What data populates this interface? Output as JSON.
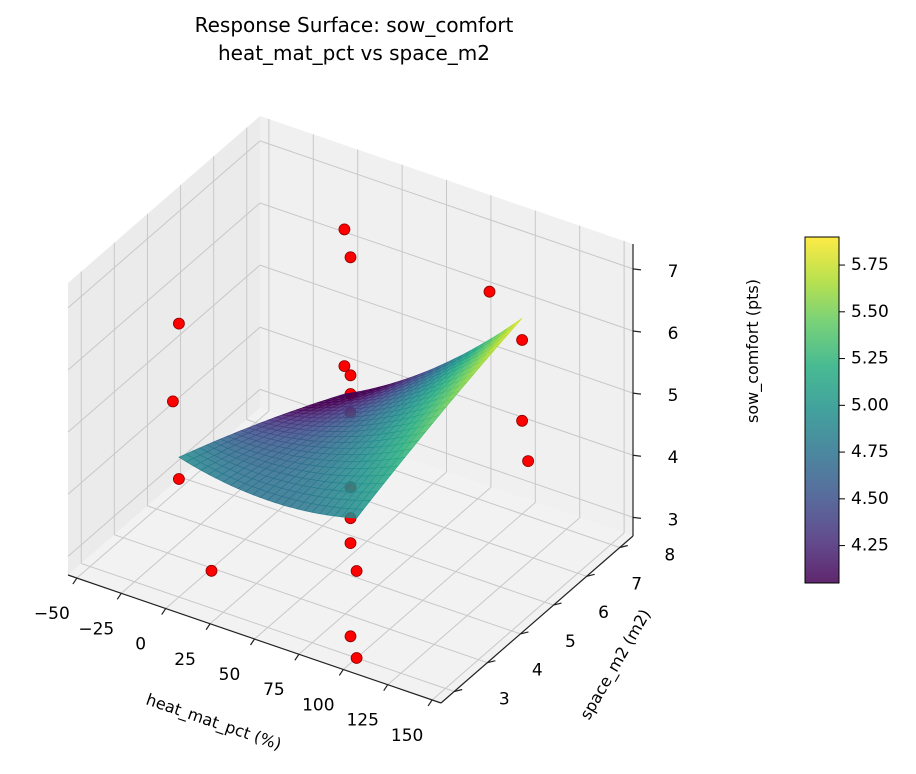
{
  "chart_data": {
    "type": "surface3d",
    "title_line1": "Response Surface: sow_comfort",
    "title_line2": "heat_mat_pct vs space_m2",
    "xlabel": "heat_mat_pct (%)",
    "ylabel": "space_m2 (m2)",
    "zlabel": "sow_comfort (pts)",
    "x_ticks": [
      -50,
      -25,
      0,
      25,
      50,
      75,
      100,
      125,
      150
    ],
    "y_ticks": [
      3,
      4,
      5,
      6,
      7,
      8
    ],
    "z_ticks": [
      3,
      4,
      5,
      6,
      7
    ],
    "xlim": [
      -55,
      155
    ],
    "ylim": [
      2.6,
      8.4
    ],
    "zlim": [
      2.7,
      7.4
    ],
    "colorbar": {
      "min": 4.05,
      "max": 5.9,
      "ticks": [
        "4.25",
        "4.50",
        "4.75",
        "5.00",
        "5.25",
        "5.50",
        "5.75"
      ],
      "colormap": "viridis"
    },
    "surface_range": {
      "x": [
        0,
        100
      ],
      "y": [
        3,
        8
      ]
    },
    "points_color": "#ff0000",
    "points": [
      {
        "x": -50,
        "y": 5.5,
        "z": 4.2
      },
      {
        "x": 0,
        "y": 3,
        "z": 4.6
      },
      {
        "x": 0,
        "y": 3,
        "z": 7.1
      },
      {
        "x": 0,
        "y": 8,
        "z": 4.1
      },
      {
        "x": 0,
        "y": 8,
        "z": 6.3
      },
      {
        "x": 100,
        "y": 3,
        "z": 4.1
      },
      {
        "x": 100,
        "y": 8,
        "z": 5.5
      },
      {
        "x": 100,
        "y": 8,
        "z": 4.2
      },
      {
        "x": 150,
        "y": 5.5,
        "z": 5.2
      },
      {
        "x": 50,
        "y": 1.3,
        "z": 4.4
      },
      {
        "x": 50,
        "y": 9.7,
        "z": 5.0
      },
      {
        "x": 50,
        "y": 5.5,
        "z": 1.4
      },
      {
        "x": 50,
        "y": 5.5,
        "z": 7.5
      },
      {
        "x": 50,
        "y": 5.5,
        "z": 5.0
      },
      {
        "x": 50,
        "y": 5.5,
        "z": 5.6
      },
      {
        "x": 50,
        "y": 5.5,
        "z": 5.3
      },
      {
        "x": 50,
        "y": 5.5,
        "z": 3.8
      },
      {
        "x": 50,
        "y": 5.5,
        "z": 2.9
      },
      {
        "x": 50,
        "y": 5.5,
        "z": 3.3
      },
      {
        "x": 100,
        "y": 3,
        "z": 2.7
      }
    ]
  }
}
